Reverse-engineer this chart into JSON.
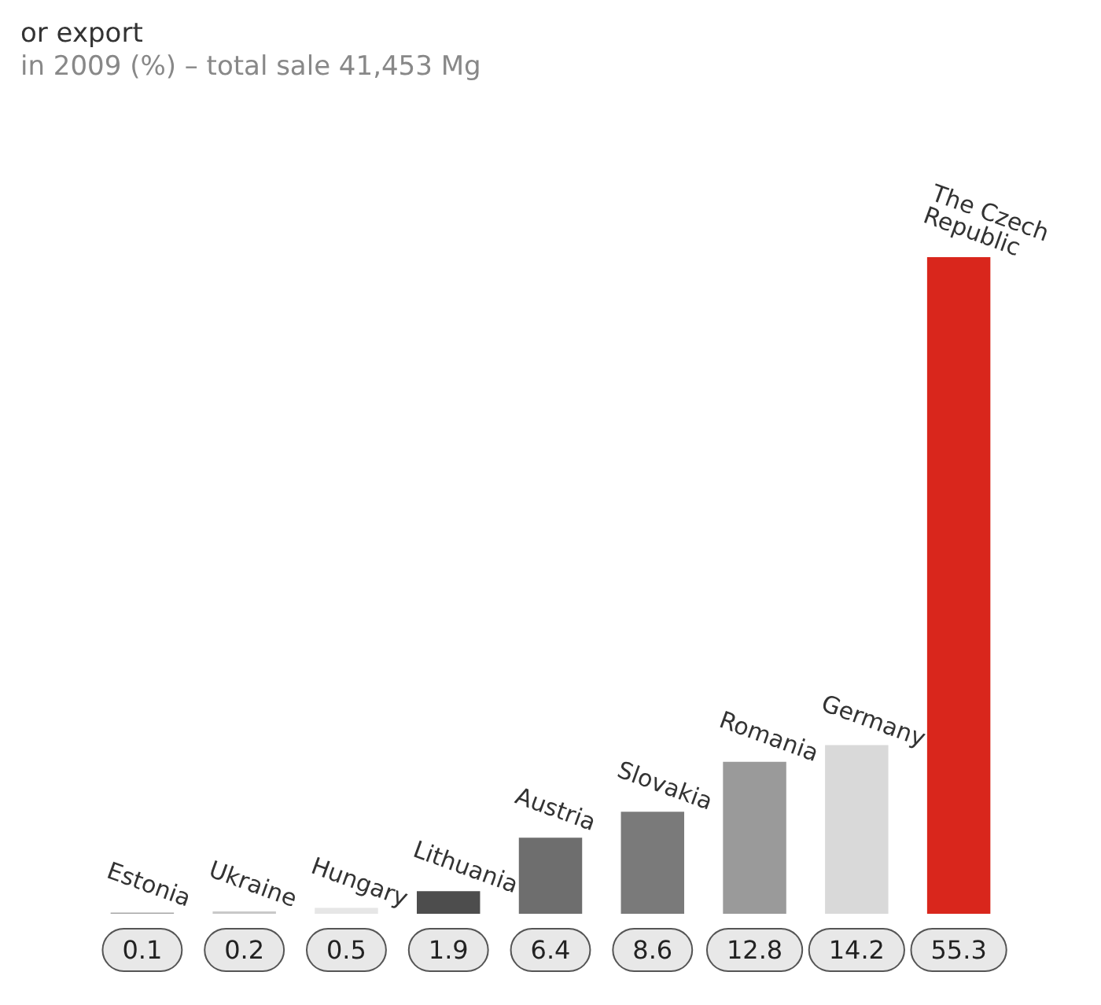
{
  "chart_data": {
    "type": "bar",
    "title": "or export",
    "subtitle": "in 2009 (%) – total sale 41,453 Mg",
    "categories": [
      "Estonia",
      "Ukraine",
      "Hungary",
      "Lithuania",
      "Austria",
      "Slovakia",
      "Romania",
      "Germany",
      "The Czech Republic"
    ],
    "values": [
      0.1,
      0.2,
      0.5,
      1.9,
      6.4,
      8.6,
      12.8,
      14.2,
      55.3
    ],
    "colors": [
      "#a6a6a6",
      "#c8c8c8",
      "#e6e6e6",
      "#4d4d4d",
      "#6e6e6e",
      "#7a7a7a",
      "#9a9a9a",
      "#d9d9d9",
      "#d9261c"
    ],
    "data_labels": true
  }
}
